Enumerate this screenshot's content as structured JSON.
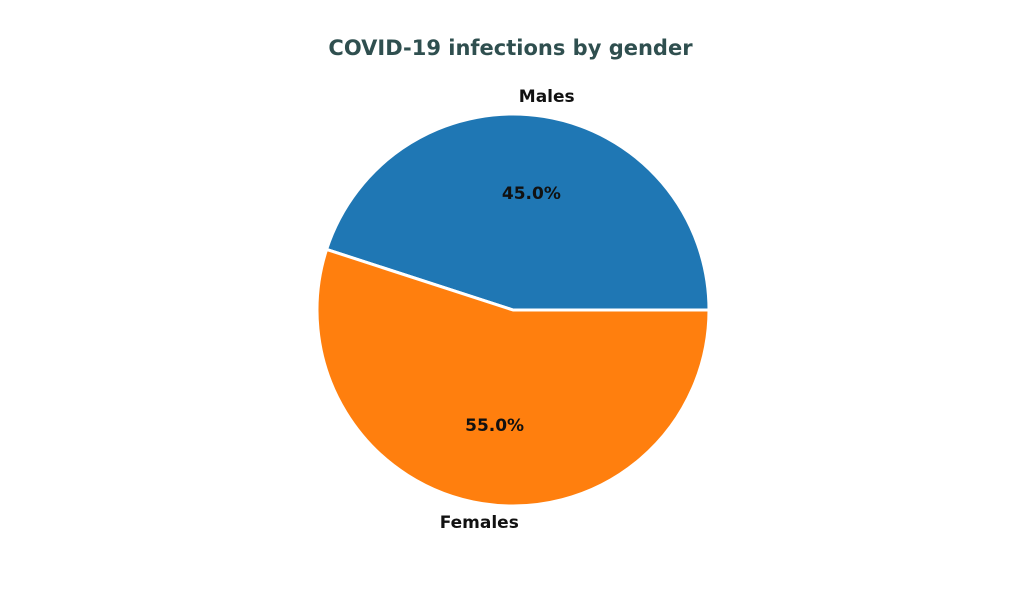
{
  "chart_data": {
    "type": "pie",
    "title": "COVID-19 infections by gender",
    "slices": [
      {
        "label": "Males",
        "value": 45.0,
        "pct_label": "45.0%",
        "color": "#1f77b4"
      },
      {
        "label": "Females",
        "value": 55.0,
        "pct_label": "55.0%",
        "color": "#ff7f0e"
      }
    ],
    "start_angle": "0 degrees (3 o'clock), counter-clockwise",
    "legend": "none"
  }
}
